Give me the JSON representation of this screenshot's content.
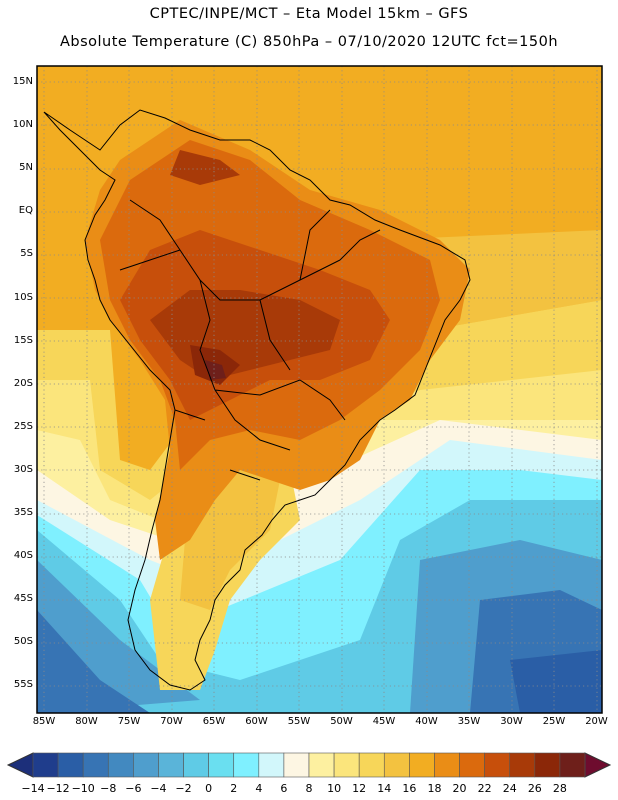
{
  "header": {
    "line1": "CPTEC/INPE/MCT –  Eta Model 15km – GFS",
    "line2": "Absolute Temperature (C) 850hPa – 07/10/2020 12UTC fct=150h"
  },
  "axes": {
    "lat_labels": [
      "15N",
      "10N",
      "5N",
      "EQ",
      "5S",
      "10S",
      "15S",
      "20S",
      "25S",
      "30S",
      "35S",
      "40S",
      "45S",
      "50S",
      "55S"
    ],
    "lon_labels": [
      "85W",
      "80W",
      "75W",
      "70W",
      "65W",
      "60W",
      "55W",
      "50W",
      "45W",
      "40W",
      "35W",
      "30W",
      "25W",
      "20W"
    ]
  },
  "colorbar": {
    "labels": [
      "-14",
      "-12",
      "-10",
      "-8",
      "-6",
      "-4",
      "-2",
      "0",
      "2",
      "4",
      "6",
      "8",
      "10",
      "12",
      "14",
      "16",
      "18",
      "20",
      "22",
      "24",
      "26",
      "28"
    ],
    "colors": [
      "#1f3d8c",
      "#2a5ea6",
      "#3774b4",
      "#4289c0",
      "#4f9ecd",
      "#5ab4d9",
      "#5fcbe6",
      "#6adff0",
      "#7ff0ff",
      "#d2f7fb",
      "#fdf6e3",
      "#fdf0a0",
      "#fbe57c",
      "#f7d659",
      "#f3c240",
      "#f2ad22",
      "#ea8d16",
      "#db6a0d",
      "#c74f0b",
      "#a83a08",
      "#8b2708",
      "#6e1f1a"
    ],
    "low_end_color": "#1c2f7a",
    "high_end_color": "#6e0c2e"
  },
  "legend_colors": {
    "ocean_warm": "#f2ad22",
    "land_hot": "#c74f0b",
    "land_core": "#8b2708",
    "cold_sea": "#4fbfdc"
  }
}
